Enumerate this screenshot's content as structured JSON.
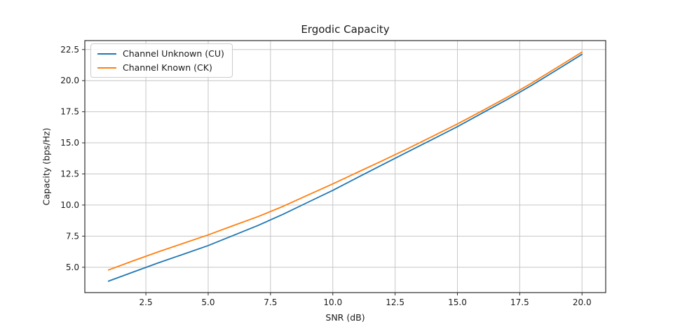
{
  "figure": {
    "background": "#ffffff",
    "text_color": "#1a1a1a",
    "grid_color": "#c6c6c6",
    "spine_color": "#2b2b2b"
  },
  "chart_data": {
    "type": "line",
    "title": "Ergodic Capacity",
    "xlabel": "SNR (dB)",
    "ylabel": "Capacity (bps/Hz)",
    "grid": true,
    "legend_position": "upper left",
    "xlim": [
      0.05,
      20.95
    ],
    "ylim": [
      2.96,
      23.22
    ],
    "xticks": [
      2.5,
      5.0,
      7.5,
      10.0,
      12.5,
      15.0,
      17.5,
      20.0
    ],
    "yticks": [
      5.0,
      7.5,
      10.0,
      12.5,
      15.0,
      17.5,
      20.0,
      22.5
    ],
    "x": [
      1,
      2,
      3,
      4,
      5,
      6,
      7,
      8,
      9,
      10,
      11,
      12,
      13,
      14,
      15,
      16,
      17,
      18,
      19,
      20
    ],
    "series": [
      {
        "name": "Channel Unknown (CU)",
        "color": "#1f77b4",
        "values": [
          3.88,
          4.62,
          5.35,
          6.04,
          6.74,
          7.55,
          8.36,
          9.25,
          10.22,
          11.18,
          12.22,
          13.25,
          14.27,
          15.28,
          16.3,
          17.4,
          18.49,
          19.65,
          20.88,
          22.12
        ]
      },
      {
        "name": "Channel Known (CK)",
        "color": "#ff7f0e",
        "values": [
          4.78,
          5.52,
          6.24,
          6.92,
          7.6,
          8.34,
          9.07,
          9.89,
          10.8,
          11.7,
          12.64,
          13.57,
          14.53,
          15.52,
          16.52,
          17.58,
          18.67,
          19.83,
          21.06,
          22.3
        ]
      }
    ]
  }
}
